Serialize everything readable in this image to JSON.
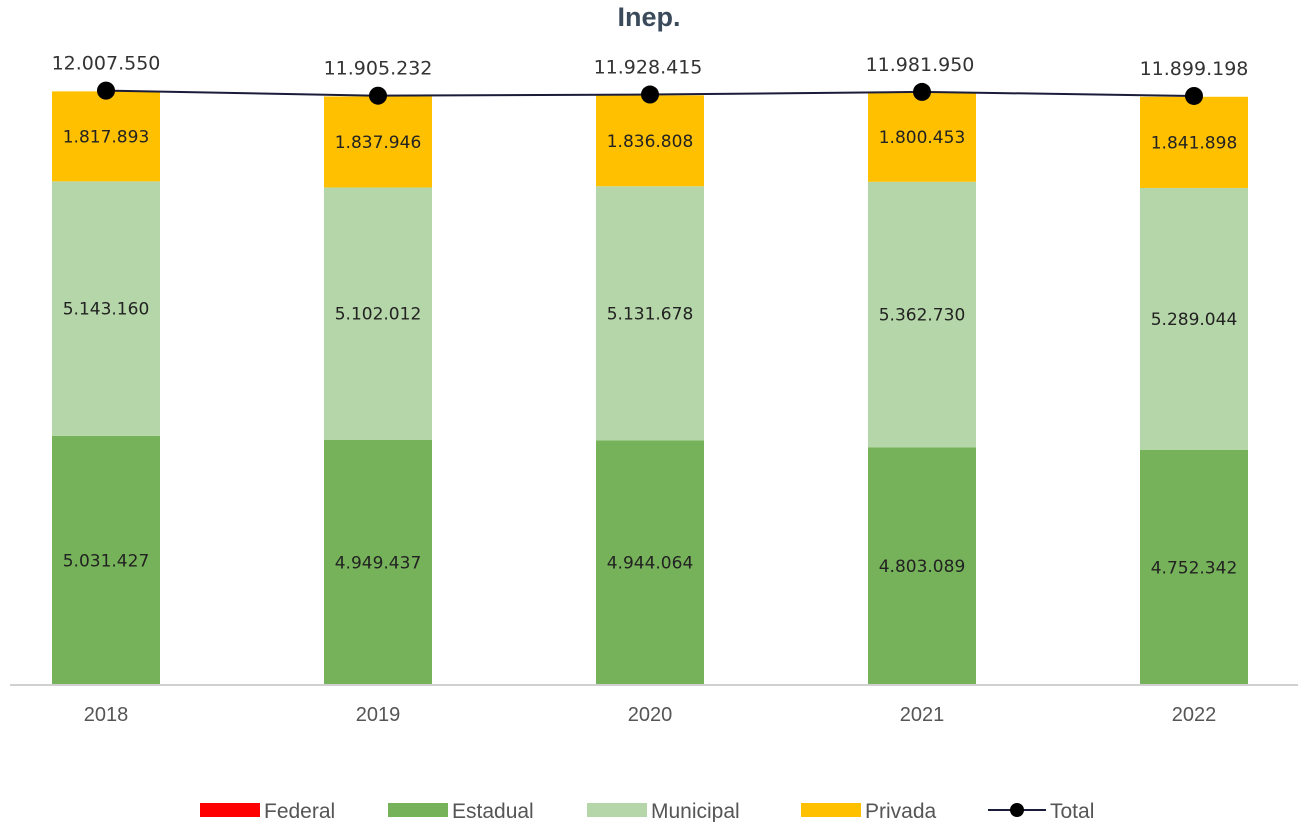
{
  "chart_data": {
    "type": "bar",
    "stacked": true,
    "title": "Inep.",
    "categories": [
      "2018",
      "2019",
      "2020",
      "2021",
      "2022"
    ],
    "series": [
      {
        "name": "Federal",
        "color": "#ff0000",
        "values": [
          0,
          0,
          0,
          0,
          0
        ],
        "labels": [
          "",
          "",
          "",
          "",
          ""
        ]
      },
      {
        "name": "Estadual",
        "color": "#76b25a",
        "values": [
          5031427,
          4949437,
          4944064,
          4803089,
          4752342
        ],
        "labels": [
          "5.031.427",
          "4.949.437",
          "4.944.064",
          "4.803.089",
          "4.752.342"
        ]
      },
      {
        "name": "Municipal",
        "color": "#b5d6a8",
        "values": [
          5143160,
          5102012,
          5131678,
          5362730,
          5289044
        ],
        "labels": [
          "5.143.160",
          "5.102.012",
          "5.131.678",
          "5.362.730",
          "5.289.044"
        ]
      },
      {
        "name": "Privada",
        "color": "#ffc000",
        "values": [
          1817893,
          1837946,
          1836808,
          1800453,
          1841898
        ],
        "labels": [
          "1.817.893",
          "1.837.946",
          "1.836.808",
          "1.800.453",
          "1.841.898"
        ]
      }
    ],
    "total": {
      "name": "Total",
      "color": "#1b1b3a",
      "values": [
        12007550,
        11905232,
        11928415,
        11981950,
        11899198
      ],
      "labels": [
        "12.007.550",
        "11.905.232",
        "11.928.415",
        "11.981.950",
        "11.899.198"
      ]
    },
    "ylim": [
      0,
      12000000
    ],
    "grid": false,
    "legend_position": "bottom"
  }
}
